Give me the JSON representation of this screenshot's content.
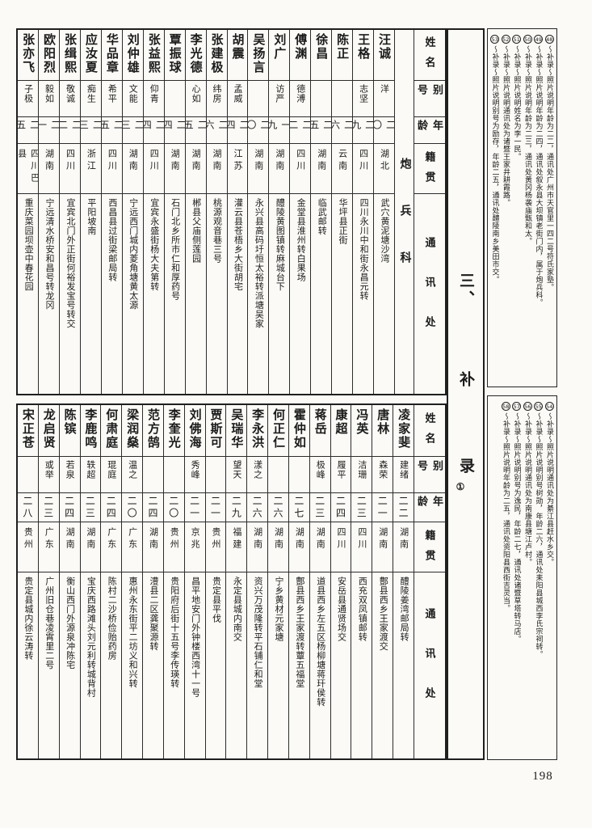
{
  "page": {
    "number": "198",
    "section_title": {
      "part1": "三、",
      "part2": "补",
      "part3": "录",
      "part4": "①"
    },
    "field_headers": [
      "姓名",
      "别号",
      "年龄",
      "籍贯",
      "通讯处"
    ]
  },
  "top": {
    "category": "炮兵科",
    "entries": [
      {
        "name": "汪诚",
        "alias": "洋",
        "age": "二〇",
        "origin": "湖北",
        "address": "武穴黄泥塘沙湾"
      },
      {
        "name": "王格",
        "alias": "志坚",
        "age": "二九",
        "origin": "四川",
        "address": "四川永川中和街永昌元转"
      },
      {
        "name": "陈正",
        "alias": "",
        "age": "二六",
        "origin": "云南",
        "address": "华坪县正街"
      },
      {
        "name": "徐昌",
        "alias": "",
        "age": "二五",
        "origin": "湖南",
        "address": "临武邮转"
      },
      {
        "name": "傅渊",
        "alias": "德溥",
        "age": "二二",
        "origin": "四川",
        "address": "金堂县淮州转白果场"
      },
      {
        "name": "刘广",
        "alias": "访严",
        "age": "一九",
        "origin": "湖南",
        "address": "醴陵黄图镇转麻城台下"
      },
      {
        "name": "吴扬言",
        "alias": "",
        "age": "二〇",
        "origin": "湖南",
        "address": "永兴县高码圩恒太裕转派塘吴家"
      },
      {
        "name": "胡震",
        "alias": "孟威",
        "age": "二四",
        "origin": "江苏",
        "address": "灌云县苍梧乡大街胡宅"
      },
      {
        "name": "张建极",
        "alias": "纬房",
        "age": "二六",
        "origin": "湖南",
        "address": "桃源观音巷三号"
      },
      {
        "name": "李光德",
        "alias": "心如",
        "age": "二五",
        "origin": "湖南",
        "address": "郴县父庙侧莲园"
      },
      {
        "name": "覃振球",
        "alias": "",
        "age": "二四",
        "origin": "湖南",
        "address": "石门北乡所市仁和厚药号"
      },
      {
        "name": "张益熙",
        "alias": "仰青",
        "age": "二四",
        "origin": "四川",
        "address": "宜宾永盛街杨大夫第转"
      },
      {
        "name": "刘仲雄",
        "alias": "文能",
        "age": "二三",
        "origin": "湖南",
        "address": "宁远西门城内菱角塘黄太源"
      },
      {
        "name": "华品章",
        "alias": "希平",
        "age": "二五",
        "origin": "四川",
        "address": "西昌县过街梁邮局转"
      },
      {
        "name": "应汝夏",
        "alias": "痴生",
        "age": "二三",
        "origin": "浙江",
        "address": "平阳坡南"
      },
      {
        "name": "张缉熙",
        "alias": "敬诚",
        "age": "二二",
        "origin": "四川",
        "address": "宜宾北门外正街何裕发宝号转交"
      },
      {
        "name": "欧阳烈",
        "alias": "毅如",
        "age": "二一",
        "origin": "湖南",
        "address": "宁远清水桥安和昌号转龙冈"
      },
      {
        "name": "张亦飞",
        "alias": "子极",
        "age": "二五",
        "origin": "四川巴县",
        "address": "重庆菜园坝壶中春花园"
      }
    ],
    "annotations": [
      {
        "num": "48",
        "text": "〜补录〜照片说明年龄为二二，通讯处广州市天官里一四二号符氏家塾。"
      },
      {
        "num": "49",
        "text": "〜补录〜照片说明年龄为二四，通讯处叙永县大坝镇老街门内，属于炮兵科。"
      },
      {
        "num": "50",
        "text": "〜补录〜照片说明年龄为二三，通讯处黄冈杨袭庙甄和太。"
      },
      {
        "num": "51",
        "text": "〜补录〜照片说明姓名为李一民。"
      },
      {
        "num": "52",
        "text": "〜补录〜照片说明通讯处为诸暨王家井耕霞路。"
      },
      {
        "num": "53",
        "text": "〜补录〜照片说明别号为励存，年龄二五，通讯处醴陵南乡美田市交。"
      }
    ]
  },
  "bottom": {
    "entries": [
      {
        "name": "凌家斐",
        "alias": "建绪",
        "age": "二二",
        "origin": "湖南",
        "address": "醴陵姜湾邮局转"
      },
      {
        "name": "唐林",
        "alias": "森荣",
        "age": "二一",
        "origin": "湖南",
        "address": "鄷县西乡王家渡交"
      },
      {
        "name": "冯英",
        "alias": "洁珊",
        "age": "二三",
        "origin": "四川",
        "address": "西充双凤镇邮转"
      },
      {
        "name": "康超",
        "alias": "履平",
        "age": "二四",
        "origin": "四川",
        "address": "安岳县通贤场交"
      },
      {
        "name": "蒋岳",
        "alias": "极峰",
        "age": "二三",
        "origin": "湖南",
        "address": "道县西乡左五区杨柳塘蒋玕侯转"
      },
      {
        "name": "霍仲如",
        "alias": "",
        "age": "二七",
        "origin": "湖南",
        "address": "鄷县西乡王家渡转蕈五福堂"
      },
      {
        "name": "何正仁",
        "alias": "",
        "age": "二六",
        "origin": "湖南",
        "address": "宁乡黄材元家塘"
      },
      {
        "name": "李永洪",
        "alias": "漾之",
        "age": "二六",
        "origin": "湖南",
        "address": "资兴万茂隆转平石铺仁和堂"
      },
      {
        "name": "吴瑞华",
        "alias": "望天",
        "age": "二九",
        "origin": "福建",
        "address": "永定县城内南交"
      },
      {
        "name": "贾斯可",
        "alias": "",
        "age": "二一",
        "origin": "贵州",
        "address": "贵定县平伐"
      },
      {
        "name": "刘佛海",
        "alias": "秀峰",
        "age": "二一",
        "origin": "京兆",
        "address": "昌平地安门外钟楼西湾十一号"
      },
      {
        "name": "李奎光",
        "alias": "",
        "age": "二〇",
        "origin": "贵州",
        "address": "贵阳府后街十五号李传瑛转"
      },
      {
        "name": "范方鹄",
        "alias": "",
        "age": "二四",
        "origin": "湖南",
        "address": "澧县二区龚聚源转"
      },
      {
        "name": "梁润燊",
        "alias": "温之",
        "age": "二〇",
        "origin": "广东",
        "address": "惠州永东街平二坊义和兴转"
      },
      {
        "name": "何肃庭",
        "alias": "琨庭",
        "age": "二四",
        "origin": "广东",
        "address": "陈村二沙桥俭贻药房"
      },
      {
        "name": "李鹿鸣",
        "alias": "轶超",
        "age": "二三",
        "origin": "湖南",
        "address": "宝庆西路滩头刘元利转城背村"
      },
      {
        "name": "陈镔",
        "alias": "若泉",
        "age": "二四",
        "origin": "湖南",
        "address": "衡山西门外源泉冲陈宅"
      },
      {
        "name": "龙启贤",
        "alias": "或举",
        "age": "二三",
        "origin": "广东",
        "address": "广州旧仓巷凌霄里二号"
      },
      {
        "name": "宋正苍",
        "alias": "",
        "age": "二八",
        "origin": "贵州",
        "address": "贵定县城内徐云涛转"
      }
    ],
    "annotations": [
      {
        "num": "54",
        "text": "〜补录〜照片说明通讯处为綦江县赶水乡交。"
      },
      {
        "num": "55",
        "text": "〜补录〜照片说明别号树勋，年龄二六，通讯处耒阳县城西李氏宗祠转。"
      },
      {
        "num": "56",
        "text": "〜补录〜照片说明通讯处为南康县塘江卢村。"
      },
      {
        "num": "57",
        "text": "〜补录〜照片说明别号为逸民，年龄二七，通讯处诸暨草塔转马店。"
      },
      {
        "num": "58",
        "text": "〜补录〜照片说明年龄为二五，通讯处资阳县西街吉灵当。"
      }
    ]
  }
}
